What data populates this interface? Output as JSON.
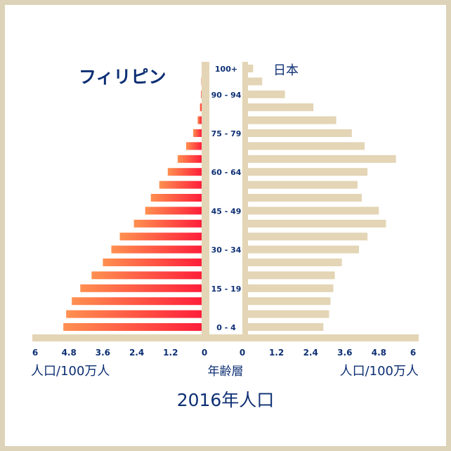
{
  "chart_data": {
    "type": "bar",
    "title": "2016年人口",
    "center_label": "年齢層",
    "categories": [
      "0 - 4",
      "5 - 9",
      "10 - 14",
      "15 - 19",
      "20 - 24",
      "25 - 29",
      "30 - 34",
      "35 - 39",
      "40 - 44",
      "45 - 49",
      "50 - 54",
      "55 - 59",
      "60 - 64",
      "65 - 69",
      "70 - 74",
      "75 - 79",
      "80 - 84",
      "85 - 89",
      "90 - 94",
      "95 - 99",
      "100+"
    ],
    "shown_category_labels": [
      "0 - 4",
      "15 - 19",
      "30 - 34",
      "45 - 49",
      "60 - 64",
      "75 - 79",
      "90 - 94",
      "100+"
    ],
    "series": [
      {
        "name": "フィリピン",
        "side": "left",
        "values": [
          4.9,
          4.8,
          4.6,
          4.3,
          3.9,
          3.5,
          3.2,
          2.9,
          2.4,
          2.0,
          1.8,
          1.5,
          1.2,
          0.85,
          0.55,
          0.3,
          0.14,
          0.06,
          0.02,
          0.01,
          0.0
        ],
        "colors": [
          "#ff9050",
          "#ff1f3a"
        ]
      },
      {
        "name": "日本",
        "side": "right",
        "values": [
          2.65,
          2.85,
          2.9,
          3.0,
          3.05,
          3.3,
          3.9,
          4.2,
          4.85,
          4.6,
          4.0,
          3.85,
          4.2,
          5.2,
          4.1,
          3.65,
          3.1,
          2.3,
          1.3,
          0.5,
          0.18
        ],
        "colors": [
          "#e3d5b5"
        ]
      }
    ],
    "base_bar": {
      "color": "#e3d5b5"
    },
    "left_axis": {
      "xlim": [
        0,
        6
      ],
      "ticks": [
        "6",
        "4.8",
        "3.6",
        "2.4",
        "1.2",
        "0"
      ],
      "label": "人口/100万人"
    },
    "right_axis": {
      "xlim": [
        0,
        6
      ],
      "ticks": [
        "0",
        "1.2",
        "2.4",
        "3.6",
        "4.8",
        "6"
      ],
      "label": "人口/100万人"
    },
    "center_column_color": "#e3d5b5",
    "text_color": "#0d2f73"
  }
}
